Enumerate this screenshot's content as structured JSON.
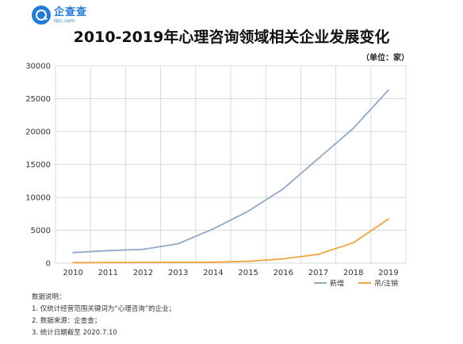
{
  "brand": {
    "name_cn": "企查查",
    "name_en": "Qcc.com"
  },
  "unit_label": "（单位：家）",
  "chart_data": {
    "type": "line",
    "title": "2010-2019年心理咨询领域相关企业发展变化",
    "xlabel": "",
    "ylabel": "",
    "x": [
      "2010",
      "2011",
      "2012",
      "2013",
      "2014",
      "2015",
      "2016",
      "2017",
      "2018",
      "2019"
    ],
    "ylim": [
      0,
      30000
    ],
    "yticks": [
      "0",
      "5000",
      "10000",
      "15000",
      "20000",
      "25000",
      "30000"
    ],
    "grid": true,
    "legend_position": "bottom-right",
    "series": [
      {
        "name": "新增",
        "color": "#8fa9c8",
        "values": [
          1600,
          1900,
          2100,
          2950,
          5200,
          7900,
          11300,
          15900,
          20500,
          26300
        ]
      },
      {
        "name": "吊/注销",
        "color": "#f0a33e",
        "values": [
          90,
          100,
          110,
          120,
          140,
          280,
          650,
          1350,
          3100,
          6700
        ]
      }
    ]
  },
  "notes": {
    "heading": "数据说明：",
    "items": [
      "1. 仅统计经营范围关键词为“心理咨询”的企业；",
      "2. 数据来源：企查查；",
      "3. 统计日期截至 2020.7.10"
    ]
  }
}
